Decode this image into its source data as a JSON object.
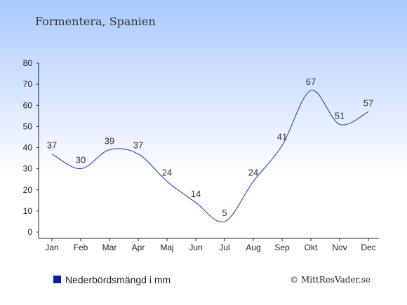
{
  "colors": {
    "line": "#2233aa",
    "legend_swatch": "#0a1fa8",
    "bg_top": "#a9c9ff",
    "bg_bottom": "#ffffff"
  },
  "chart_data": {
    "type": "line",
    "title": "Formentera, Spanien",
    "categories": [
      "Jan",
      "Feb",
      "Mar",
      "Apr",
      "Maj",
      "Jun",
      "Jul",
      "Aug",
      "Sep",
      "Okt",
      "Nov",
      "Dec"
    ],
    "series": [
      {
        "name": "Nederbördsmängd i mm",
        "values": [
          37,
          30,
          39,
          37,
          24,
          14,
          5,
          24,
          41,
          67,
          51,
          57
        ]
      }
    ],
    "ylim": [
      0,
      80
    ],
    "yticks": [
      0,
      10,
      20,
      30,
      40,
      50,
      60,
      70,
      80
    ],
    "grid": false,
    "legend_position": "bottom-left"
  },
  "copyright": "© MittResVader.se"
}
